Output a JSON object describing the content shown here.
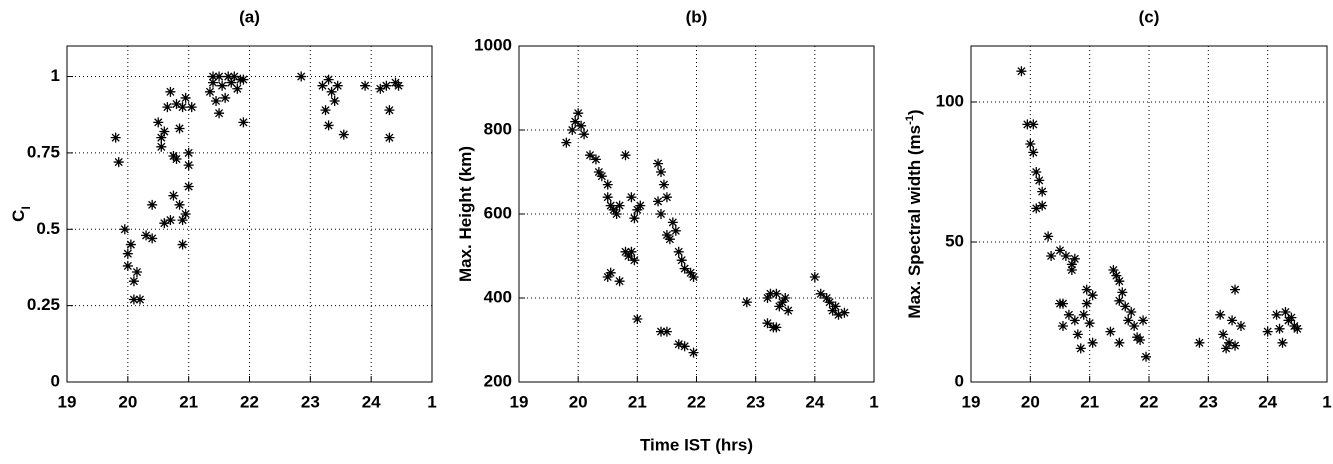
{
  "chart_data": [
    {
      "type": "scatter",
      "title": "(a)",
      "ylabel": [
        "C",
        "I"
      ],
      "grid": true,
      "color": "#000000",
      "xlim": [
        19,
        25
      ],
      "xticks": [
        19,
        20,
        21,
        22,
        23,
        24,
        {
          "value": 25,
          "label": "1"
        }
      ],
      "ylim": [
        0,
        1.1
      ],
      "yticks": [
        0,
        0.25,
        0.5,
        0.75,
        1
      ],
      "x": [
        19.8,
        19.85,
        19.95,
        20.0,
        20.0,
        20.05,
        20.1,
        20.1,
        20.15,
        20.2,
        20.3,
        20.4,
        20.4,
        20.6,
        20.7,
        20.75,
        20.85,
        20.9,
        20.95,
        20.9,
        21.0,
        20.5,
        20.55,
        20.6,
        20.55,
        20.65,
        20.7,
        20.8,
        20.75,
        20.8,
        20.9,
        20.95,
        21.0,
        21.0,
        21.05,
        20.85,
        21.35,
        21.4,
        21.45,
        21.5,
        21.55,
        21.6,
        21.7,
        21.75,
        21.8,
        21.85,
        21.9,
        21.9,
        21.4,
        21.65,
        21.5,
        22.85,
        23.2,
        23.25,
        23.3,
        23.35,
        23.3,
        23.4,
        23.45,
        23.55,
        23.9,
        24.15,
        24.25,
        24.3,
        24.3,
        24.4,
        24.45
      ],
      "values": [
        0.8,
        0.72,
        0.5,
        0.42,
        0.38,
        0.45,
        0.33,
        0.27,
        0.36,
        0.27,
        0.48,
        0.58,
        0.47,
        0.52,
        0.53,
        0.61,
        0.58,
        0.53,
        0.55,
        0.45,
        0.64,
        0.85,
        0.8,
        0.82,
        0.77,
        0.9,
        0.95,
        0.91,
        0.74,
        0.73,
        0.9,
        0.93,
        0.75,
        0.71,
        0.9,
        0.83,
        0.95,
        1.0,
        0.92,
        0.88,
        0.97,
        0.93,
        0.98,
        1.0,
        0.96,
        0.99,
        0.85,
        0.99,
        0.98,
        1.0,
        1.0,
        1.0,
        0.97,
        0.89,
        0.99,
        0.95,
        0.84,
        0.92,
        0.97,
        0.81,
        0.97,
        0.96,
        0.97,
        0.89,
        0.8,
        0.98,
        0.97
      ]
    },
    {
      "type": "scatter",
      "title": "(b)",
      "ylabel": [
        "Max. Height (km)"
      ],
      "xlabel": "Time IST (hrs)",
      "grid": true,
      "color": "#000000",
      "xlim": [
        19,
        25
      ],
      "xticks": [
        19,
        20,
        21,
        22,
        23,
        24,
        {
          "value": 25,
          "label": "1"
        }
      ],
      "ylim": [
        200,
        1000
      ],
      "yticks": [
        200,
        400,
        600,
        800,
        1000
      ],
      "x": [
        19.8,
        19.9,
        19.95,
        20.0,
        20.05,
        20.1,
        20.2,
        20.3,
        20.35,
        20.4,
        20.5,
        20.5,
        20.55,
        20.6,
        20.65,
        20.7,
        20.8,
        20.9,
        20.95,
        21.05,
        21.0,
        20.5,
        20.55,
        20.7,
        20.8,
        20.85,
        20.9,
        20.95,
        21.0,
        21.35,
        21.4,
        21.45,
        21.5,
        21.35,
        21.4,
        21.5,
        21.55,
        21.6,
        21.65,
        21.7,
        21.75,
        21.8,
        21.9,
        21.95,
        21.4,
        21.5,
        21.7,
        21.8,
        21.95,
        22.85,
        23.2,
        23.25,
        23.2,
        23.3,
        23.35,
        23.4,
        23.45,
        23.5,
        23.55,
        23.35,
        24.0,
        24.1,
        24.2,
        24.25,
        24.3,
        24.35,
        24.4,
        24.5
      ],
      "values": [
        770,
        800,
        820,
        840,
        810,
        790,
        740,
        730,
        700,
        690,
        640,
        670,
        620,
        610,
        600,
        620,
        740,
        640,
        590,
        620,
        610,
        450,
        460,
        440,
        510,
        500,
        510,
        490,
        350,
        720,
        700,
        670,
        640,
        630,
        600,
        550,
        540,
        580,
        560,
        510,
        490,
        470,
        460,
        450,
        320,
        320,
        290,
        285,
        270,
        390,
        400,
        410,
        340,
        330,
        410,
        380,
        390,
        400,
        370,
        330,
        450,
        410,
        400,
        390,
        370,
        380,
        360,
        365
      ]
    },
    {
      "type": "scatter",
      "title": "(c)",
      "ylabel": [
        "Max. Spectral width (ms",
        "-1",
        ")"
      ],
      "grid": true,
      "color": "#000000",
      "xlim": [
        19,
        25
      ],
      "xticks": [
        19,
        20,
        21,
        22,
        23,
        24,
        {
          "value": 25,
          "label": "1"
        }
      ],
      "ylim": [
        0,
        120
      ],
      "yticks": [
        0,
        50,
        100
      ],
      "x": [
        19.85,
        19.95,
        20.0,
        20.05,
        20.05,
        20.1,
        20.15,
        20.2,
        20.2,
        20.1,
        20.3,
        20.35,
        20.5,
        20.5,
        20.55,
        20.55,
        20.6,
        20.7,
        20.75,
        20.7,
        20.65,
        20.75,
        20.8,
        20.85,
        20.9,
        20.95,
        20.95,
        21.0,
        21.05,
        21.05,
        21.35,
        21.4,
        21.45,
        21.5,
        21.55,
        21.5,
        21.5,
        21.6,
        21.65,
        21.7,
        21.75,
        21.8,
        21.85,
        21.9,
        21.95,
        22.85,
        23.2,
        23.25,
        23.3,
        23.35,
        23.4,
        23.45,
        23.45,
        23.55,
        24.0,
        24.15,
        24.2,
        24.25,
        24.3,
        24.35,
        24.4,
        24.45,
        24.5
      ],
      "values": [
        111,
        92,
        85,
        82,
        92,
        75,
        72,
        68,
        63,
        62,
        52,
        45,
        47,
        28,
        28,
        20,
        45,
        42,
        44,
        40,
        24,
        22,
        17,
        12,
        24,
        28,
        33,
        21,
        31,
        14,
        18,
        40,
        38,
        36,
        32,
        29,
        14,
        27,
        22,
        25,
        20,
        16,
        15,
        22,
        9,
        14,
        24,
        17,
        12,
        14,
        22,
        33,
        13,
        20,
        18,
        24,
        19,
        14,
        25,
        22,
        23,
        20,
        19
      ]
    }
  ]
}
